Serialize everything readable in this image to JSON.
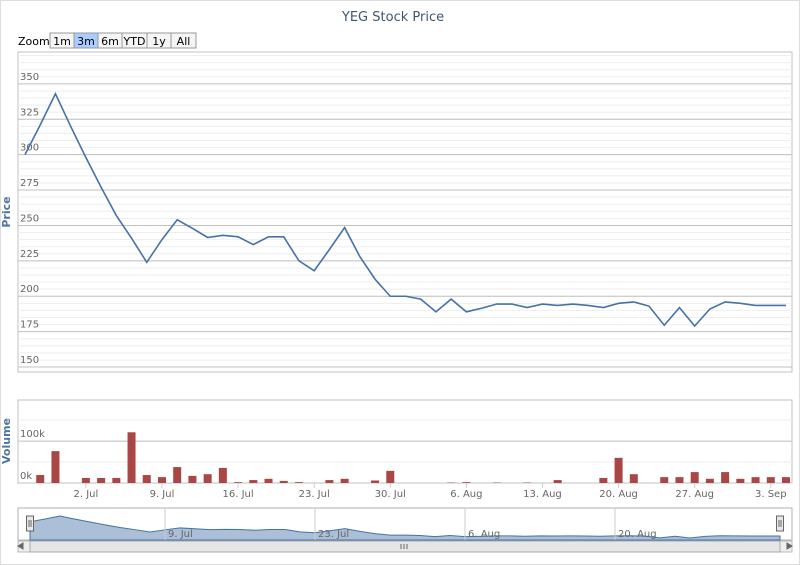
{
  "range_selector": {
    "label": "Zoom",
    "buttons": [
      "1m",
      "3m",
      "6m",
      "YTD",
      "1y",
      "All"
    ],
    "selected": 1
  },
  "chart_data": [
    {
      "type": "line",
      "title": "YEG Stock Price",
      "y_label": "Price",
      "color": "#4572a7",
      "x": [
        "26. Jun",
        "27. Jun",
        "28. Jun",
        "29. Jun",
        "2. Jul",
        "3. Jul",
        "4. Jul",
        "5. Jul",
        "6. Jul",
        "9. Jul",
        "10. Jul",
        "11. Jul",
        "12. Jul",
        "13. Jul",
        "16. Jul",
        "17. Jul",
        "18. Jul",
        "19. Jul",
        "20. Jul",
        "23. Jul",
        "24. Jul",
        "25. Jul",
        "26. Jul",
        "27. Jul",
        "30. Jul",
        "31. Jul",
        "1. Aug",
        "2. Aug",
        "3. Aug",
        "6. Aug",
        "7. Aug",
        "8. Aug",
        "9. Aug",
        "10. Aug",
        "13. Aug",
        "14. Aug",
        "15. Aug",
        "16. Aug",
        "17. Aug",
        "20. Aug",
        "21. Aug",
        "22. Aug",
        "23. Aug",
        "24. Aug",
        "27. Aug",
        "28. Aug",
        "29. Aug",
        "30. Aug",
        "31. Aug",
        "3. Sep",
        "4. Sep"
      ],
      "values": [
        300,
        321,
        343,
        320,
        298,
        277,
        257,
        241,
        224,
        240,
        254,
        248,
        241.5,
        243,
        242,
        236.5,
        242,
        242,
        225,
        218,
        233,
        248.5,
        228,
        212,
        200,
        200,
        198,
        189,
        198,
        189,
        191.5,
        194.5,
        194.5,
        192,
        194.5,
        193.5,
        194.5,
        193.5,
        192,
        195,
        196,
        193,
        179.5,
        192,
        179,
        191,
        196,
        195,
        193.5,
        193.5,
        193.5
      ],
      "ylim": [
        146.5,
        372.5
      ],
      "yticks": [
        150,
        175,
        200,
        225,
        250,
        275,
        300,
        325,
        350
      ],
      "grid": true,
      "minor_tick_interval": 5
    },
    {
      "type": "bar",
      "y_label": "Volume",
      "color": "#aa4643",
      "x": [
        "26. Jun",
        "27. Jun",
        "28. Jun",
        "29. Jun",
        "2. Jul",
        "3. Jul",
        "4. Jul",
        "5. Jul",
        "6. Jul",
        "9. Jul",
        "10. Jul",
        "11. Jul",
        "12. Jul",
        "13. Jul",
        "16. Jul",
        "17. Jul",
        "18. Jul",
        "19. Jul",
        "20. Jul",
        "23. Jul",
        "24. Jul",
        "25. Jul",
        "26. Jul",
        "27. Jul",
        "30. Jul",
        "31. Jul",
        "1. Aug",
        "2. Aug",
        "3. Aug",
        "6. Aug",
        "7. Aug",
        "8. Aug",
        "9. Aug",
        "10. Aug",
        "13. Aug",
        "14. Aug",
        "15. Aug",
        "16. Aug",
        "17. Aug",
        "20. Aug",
        "21. Aug",
        "22. Aug",
        "23. Aug",
        "24. Aug",
        "27. Aug",
        "28. Aug",
        "29. Aug",
        "30. Aug",
        "31. Aug",
        "3. Sep",
        "4. Sep"
      ],
      "values": [
        0,
        19000,
        76000,
        0,
        12000,
        12000,
        12000,
        121000,
        19000,
        14000,
        38000,
        17000,
        21000,
        36000,
        2000,
        7000,
        10000,
        5000,
        2000,
        0,
        7000,
        10000,
        0,
        6000,
        29000,
        0,
        0,
        0,
        1000,
        2000,
        0,
        1000,
        0,
        1000,
        0,
        7000,
        0,
        0,
        12000,
        60000,
        21000,
        0,
        14000,
        14000,
        26000,
        10000,
        26000,
        10000,
        14000,
        14000,
        14000
      ],
      "ylim": [
        0,
        198000
      ],
      "yticks": [
        {
          "value": 0,
          "label": "0k"
        },
        {
          "value": 100000,
          "label": "100k"
        }
      ],
      "grid": true,
      "minor_tick_interval": 50000,
      "xticks": [
        "2. Jul",
        "9. Jul",
        "16. Jul",
        "23. Jul",
        "30. Jul",
        "6. Aug",
        "13. Aug",
        "20. Aug",
        "27. Aug",
        "3. Sep"
      ]
    }
  ],
  "navigator": {
    "xticks": [
      "9. Jul",
      "23. Jul",
      "6. Aug",
      "20. Aug"
    ]
  }
}
